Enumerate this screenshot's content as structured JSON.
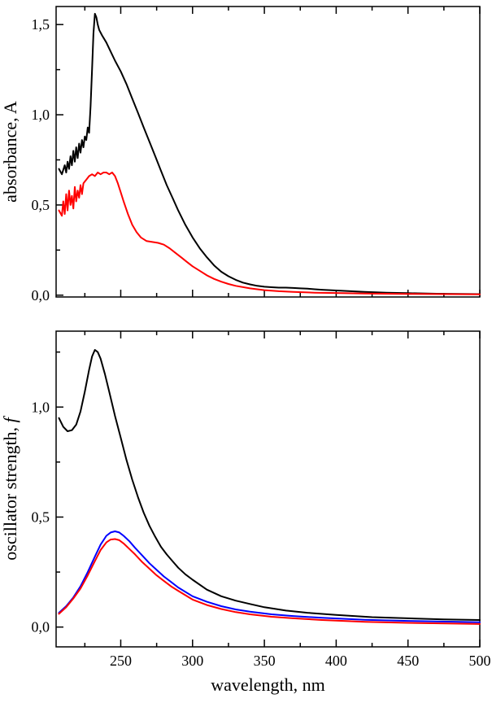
{
  "figure": {
    "background": "#ffffff",
    "axis_color": "#000000"
  },
  "chart_data": [
    {
      "type": "line",
      "title": "",
      "ylabel": "absorbance, A",
      "ylabel_italic": "",
      "xlabel": "",
      "xlim": [
        205,
        500
      ],
      "ylim": [
        -0.01,
        1.6
      ],
      "xticks": [
        250,
        300,
        350,
        400,
        450,
        500
      ],
      "yticks": [
        0.0,
        0.5,
        1.0,
        1.5
      ],
      "ytick_labels": [
        "0,0",
        "0,5",
        "1,0",
        "1,5"
      ],
      "grid": false,
      "legend": "none",
      "series": [
        {
          "name": "absorbance-black",
          "color": "#000000",
          "x": [
            207,
            209,
            211,
            212,
            213,
            214,
            215,
            216,
            217,
            218,
            219,
            220,
            221,
            222,
            223,
            224,
            225,
            226,
            227,
            228,
            229,
            230,
            231,
            232,
            233,
            234,
            235,
            237,
            240,
            243,
            246,
            250,
            254,
            258,
            262,
            266,
            270,
            274,
            278,
            282,
            286,
            290,
            295,
            300,
            305,
            310,
            315,
            320,
            325,
            330,
            335,
            340,
            345,
            350,
            355,
            360,
            365,
            370,
            375,
            380,
            385,
            390,
            400,
            410,
            420,
            435,
            450,
            470,
            500
          ],
          "y": [
            0.7,
            0.67,
            0.72,
            0.68,
            0.74,
            0.7,
            0.77,
            0.72,
            0.8,
            0.74,
            0.82,
            0.76,
            0.84,
            0.79,
            0.86,
            0.82,
            0.88,
            0.86,
            0.93,
            0.9,
            1.05,
            1.25,
            1.45,
            1.56,
            1.54,
            1.5,
            1.47,
            1.44,
            1.4,
            1.35,
            1.3,
            1.24,
            1.17,
            1.09,
            1.01,
            0.93,
            0.85,
            0.77,
            0.69,
            0.61,
            0.54,
            0.47,
            0.39,
            0.32,
            0.26,
            0.21,
            0.165,
            0.13,
            0.105,
            0.085,
            0.07,
            0.06,
            0.052,
            0.047,
            0.044,
            0.042,
            0.042,
            0.04,
            0.038,
            0.036,
            0.033,
            0.03,
            0.026,
            0.022,
            0.018,
            0.014,
            0.011,
            0.008,
            0.006
          ]
        },
        {
          "name": "absorbance-red",
          "color": "#ff0000",
          "x": [
            207,
            209,
            210,
            211,
            212,
            213,
            214,
            215,
            216,
            217,
            218,
            219,
            220,
            221,
            222,
            223,
            224,
            226,
            228,
            230,
            232,
            234,
            236,
            238,
            240,
            242,
            244,
            246,
            248,
            250,
            252,
            255,
            258,
            261,
            264,
            268,
            272,
            276,
            280,
            284,
            288,
            292,
            296,
            300,
            305,
            310,
            315,
            320,
            325,
            330,
            340,
            350,
            360,
            370,
            385,
            400,
            420,
            450,
            500
          ],
          "y": [
            0.47,
            0.44,
            0.52,
            0.45,
            0.56,
            0.47,
            0.58,
            0.5,
            0.55,
            0.48,
            0.6,
            0.52,
            0.58,
            0.54,
            0.61,
            0.56,
            0.62,
            0.64,
            0.66,
            0.67,
            0.66,
            0.68,
            0.67,
            0.68,
            0.68,
            0.67,
            0.68,
            0.66,
            0.62,
            0.57,
            0.52,
            0.45,
            0.39,
            0.35,
            0.32,
            0.3,
            0.295,
            0.29,
            0.28,
            0.26,
            0.235,
            0.21,
            0.185,
            0.16,
            0.135,
            0.11,
            0.09,
            0.075,
            0.062,
            0.052,
            0.038,
            0.028,
            0.022,
            0.018,
            0.014,
            0.012,
            0.009,
            0.007,
            0.005
          ]
        }
      ]
    },
    {
      "type": "line",
      "title": "",
      "ylabel": "oscillator strength, ",
      "ylabel_italic": "f",
      "xlabel": "wavelength, nm",
      "xlim": [
        205,
        500
      ],
      "ylim": [
        -0.09,
        1.345
      ],
      "xticks": [
        250,
        300,
        350,
        400,
        450,
        500
      ],
      "yticks": [
        0.0,
        0.5,
        1.0
      ],
      "ytick_labels": [
        "0,0",
        "0,5",
        "1,0"
      ],
      "grid": false,
      "legend": "none",
      "series": [
        {
          "name": "oscillator-black",
          "color": "#000000",
          "x": [
            207,
            210,
            213,
            216,
            219,
            222,
            225,
            228,
            230,
            232,
            234,
            236,
            239,
            242,
            246,
            250,
            254,
            258,
            262,
            266,
            270,
            274,
            278,
            282,
            286,
            290,
            295,
            300,
            310,
            320,
            330,
            340,
            350,
            365,
            380,
            400,
            425,
            450,
            475,
            500
          ],
          "y": [
            0.95,
            0.91,
            0.89,
            0.895,
            0.92,
            0.98,
            1.07,
            1.17,
            1.23,
            1.26,
            1.25,
            1.22,
            1.15,
            1.07,
            0.96,
            0.86,
            0.76,
            0.67,
            0.59,
            0.52,
            0.46,
            0.41,
            0.365,
            0.33,
            0.3,
            0.27,
            0.24,
            0.215,
            0.17,
            0.14,
            0.12,
            0.105,
            0.09,
            0.075,
            0.065,
            0.055,
            0.045,
            0.04,
            0.035,
            0.032
          ]
        },
        {
          "name": "oscillator-blue",
          "color": "#0000ff",
          "x": [
            207,
            212,
            217,
            222,
            227,
            232,
            236,
            240,
            243,
            246,
            249,
            252,
            256,
            260,
            265,
            270,
            275,
            280,
            285,
            290,
            300,
            310,
            320,
            330,
            340,
            355,
            370,
            390,
            420,
            450,
            500
          ],
          "y": [
            0.065,
            0.095,
            0.135,
            0.185,
            0.25,
            0.32,
            0.375,
            0.415,
            0.43,
            0.435,
            0.43,
            0.415,
            0.39,
            0.36,
            0.325,
            0.29,
            0.26,
            0.23,
            0.205,
            0.18,
            0.14,
            0.115,
            0.095,
            0.08,
            0.07,
            0.058,
            0.05,
            0.042,
            0.033,
            0.028,
            0.022
          ]
        },
        {
          "name": "oscillator-red",
          "color": "#ff0000",
          "x": [
            207,
            212,
            217,
            222,
            227,
            232,
            236,
            240,
            243,
            246,
            249,
            252,
            256,
            260,
            265,
            270,
            275,
            280,
            285,
            290,
            300,
            310,
            320,
            330,
            340,
            355,
            370,
            390,
            420,
            450,
            500
          ],
          "y": [
            0.06,
            0.09,
            0.13,
            0.175,
            0.235,
            0.3,
            0.35,
            0.385,
            0.398,
            0.4,
            0.395,
            0.38,
            0.355,
            0.33,
            0.295,
            0.265,
            0.235,
            0.21,
            0.185,
            0.165,
            0.125,
            0.1,
            0.082,
            0.068,
            0.058,
            0.047,
            0.04,
            0.032,
            0.024,
            0.019,
            0.014
          ]
        }
      ]
    }
  ]
}
